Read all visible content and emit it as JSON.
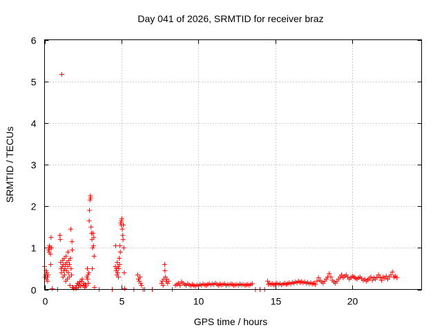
{
  "chart_data": {
    "type": "scatter",
    "title": "Day 041 of 2026, SRMTID for receiver braz",
    "xlabel": "GPS time / hours",
    "ylabel": "SRMTID / TECUs",
    "xlim": [
      0,
      24.5
    ],
    "ylim": [
      0,
      6
    ],
    "x_ticks": [
      0,
      5,
      10,
      15,
      20
    ],
    "y_ticks": [
      0,
      1,
      2,
      3,
      4,
      5,
      6
    ],
    "grid": true,
    "marker": "plus",
    "color": "#ff0000",
    "series": [
      {
        "name": "SRMTID",
        "points": [
          [
            0.0,
            0.55
          ],
          [
            0.05,
            0.3
          ],
          [
            0.08,
            0.35
          ],
          [
            0.1,
            0.45
          ],
          [
            0.12,
            0.25
          ],
          [
            0.15,
            0.4
          ],
          [
            0.18,
            0.3
          ],
          [
            0.2,
            0.2
          ],
          [
            0.22,
            0.35
          ],
          [
            0.25,
            0.95
          ],
          [
            0.28,
            1.0
          ],
          [
            0.3,
            0.9
          ],
          [
            0.32,
            1.05
          ],
          [
            0.35,
            1.0
          ],
          [
            0.38,
            0.85
          ],
          [
            0.4,
            0.6
          ],
          [
            0.42,
            1.25
          ],
          [
            0.45,
            1.0
          ],
          [
            0.5,
            0.02
          ],
          [
            0.85,
            0.0
          ],
          [
            1.0,
            1.3
          ],
          [
            1.02,
            1.2
          ],
          [
            1.05,
            0.65
          ],
          [
            1.08,
            0.5
          ],
          [
            1.1,
            0.4
          ],
          [
            1.12,
            5.17
          ],
          [
            1.15,
            0.55
          ],
          [
            1.18,
            0.7
          ],
          [
            1.2,
            0.3
          ],
          [
            1.22,
            0.6
          ],
          [
            1.25,
            0.45
          ],
          [
            1.28,
            0.75
          ],
          [
            1.3,
            0.35
          ],
          [
            1.32,
            0.5
          ],
          [
            1.35,
            0.6
          ],
          [
            1.38,
            0.2
          ],
          [
            1.4,
            0.8
          ],
          [
            1.42,
            0.45
          ],
          [
            1.45,
            0.65
          ],
          [
            1.48,
            0.25
          ],
          [
            1.5,
            0.55
          ],
          [
            1.52,
            0.9
          ],
          [
            1.55,
            0.4
          ],
          [
            1.58,
            0.7
          ],
          [
            1.6,
            0.3
          ],
          [
            1.62,
            0.6
          ],
          [
            1.65,
            0.1
          ],
          [
            1.68,
            0.75
          ],
          [
            1.7,
            1.45
          ],
          [
            1.72,
            0.5
          ],
          [
            1.75,
            0.35
          ],
          [
            1.78,
            1.15
          ],
          [
            1.8,
            0.95
          ],
          [
            1.82,
            0.05
          ],
          [
            1.85,
            0.05
          ],
          [
            1.9,
            0.02
          ],
          [
            2.0,
            0.05
          ],
          [
            2.05,
            0.02
          ],
          [
            2.1,
            0.1
          ],
          [
            2.15,
            0.15
          ],
          [
            2.2,
            0.05
          ],
          [
            2.25,
            0.12
          ],
          [
            2.3,
            0.18
          ],
          [
            2.35,
            0.08
          ],
          [
            2.4,
            0.2
          ],
          [
            2.45,
            0.25
          ],
          [
            2.5,
            0.1
          ],
          [
            2.55,
            0.15
          ],
          [
            2.6,
            0.05
          ],
          [
            2.65,
            0.12
          ],
          [
            2.7,
            0.08
          ],
          [
            2.75,
            0.3
          ],
          [
            2.78,
            0.5
          ],
          [
            2.8,
            0.25
          ],
          [
            2.82,
            0.35
          ],
          [
            2.85,
            0.15
          ],
          [
            2.88,
            0.4
          ],
          [
            2.9,
            1.65
          ],
          [
            2.92,
            1.9
          ],
          [
            2.95,
            2.15
          ],
          [
            2.98,
            2.25
          ],
          [
            3.0,
            2.2
          ],
          [
            3.02,
            1.5
          ],
          [
            3.05,
            1.35
          ],
          [
            3.08,
            1.2
          ],
          [
            3.1,
            0.5
          ],
          [
            3.12,
            1.0
          ],
          [
            3.15,
            1.35
          ],
          [
            3.18,
            1.05
          ],
          [
            3.2,
            1.25
          ],
          [
            3.22,
            0.8
          ],
          [
            3.25,
            0.05
          ],
          [
            3.55,
            0.0
          ],
          [
            4.4,
            0.0
          ],
          [
            4.6,
            0.55
          ],
          [
            4.62,
            1.05
          ],
          [
            4.65,
            0.45
          ],
          [
            4.68,
            0.5
          ],
          [
            4.7,
            0.35
          ],
          [
            4.72,
            0.65
          ],
          [
            4.75,
            0.4
          ],
          [
            4.78,
            0.55
          ],
          [
            4.8,
            0.3
          ],
          [
            4.82,
            0.5
          ],
          [
            4.85,
            0.75
          ],
          [
            4.88,
            0.6
          ],
          [
            4.9,
            1.05
          ],
          [
            4.92,
            0.9
          ],
          [
            4.95,
            1.6
          ],
          [
            4.98,
            1.55
          ],
          [
            5.0,
            1.65
          ],
          [
            5.02,
            1.7
          ],
          [
            5.05,
            1.45
          ],
          [
            5.08,
            1.3
          ],
          [
            5.1,
            1.2
          ],
          [
            5.12,
            1.55
          ],
          [
            5.15,
            1.0
          ],
          [
            5.18,
            0.4
          ],
          [
            5.2,
            0.02
          ],
          [
            5.8,
            0.0
          ],
          [
            6.05,
            0.35
          ],
          [
            6.1,
            0.25
          ],
          [
            6.15,
            0.2
          ],
          [
            6.2,
            0.3
          ],
          [
            6.25,
            0.15
          ],
          [
            6.3,
            0.1
          ],
          [
            6.4,
            0.0
          ],
          [
            6.5,
            0.0
          ],
          [
            7.0,
            0.0
          ],
          [
            7.6,
            0.15
          ],
          [
            7.65,
            0.2
          ],
          [
            7.7,
            0.1
          ],
          [
            7.75,
            0.25
          ],
          [
            7.8,
            0.6
          ],
          [
            7.82,
            0.45
          ],
          [
            7.85,
            0.3
          ],
          [
            7.9,
            0.2
          ],
          [
            7.95,
            0.25
          ],
          [
            8.0,
            0.15
          ],
          [
            8.05,
            0.2
          ],
          [
            8.3,
            0.0
          ],
          [
            8.5,
            0.1
          ],
          [
            8.6,
            0.12
          ],
          [
            8.7,
            0.15
          ],
          [
            8.8,
            0.1
          ],
          [
            8.9,
            0.18
          ],
          [
            9.0,
            0.15
          ],
          [
            9.1,
            0.12
          ],
          [
            9.2,
            0.1
          ],
          [
            9.3,
            0.14
          ],
          [
            9.4,
            0.11
          ],
          [
            9.5,
            0.09
          ],
          [
            9.6,
            0.12
          ],
          [
            9.7,
            0.1
          ],
          [
            9.8,
            0.08
          ],
          [
            9.9,
            0.11
          ],
          [
            10.0,
            0.09
          ],
          [
            10.1,
            0.12
          ],
          [
            10.2,
            0.1
          ],
          [
            10.3,
            0.13
          ],
          [
            10.4,
            0.11
          ],
          [
            10.5,
            0.1
          ],
          [
            10.6,
            0.12
          ],
          [
            10.7,
            0.14
          ],
          [
            10.8,
            0.11
          ],
          [
            10.9,
            0.13
          ],
          [
            11.0,
            0.12
          ],
          [
            11.1,
            0.15
          ],
          [
            11.2,
            0.12
          ],
          [
            11.3,
            0.1
          ],
          [
            11.4,
            0.13
          ],
          [
            11.5,
            0.11
          ],
          [
            11.6,
            0.12
          ],
          [
            11.7,
            0.14
          ],
          [
            11.8,
            0.1
          ],
          [
            11.9,
            0.12
          ],
          [
            12.0,
            0.11
          ],
          [
            12.1,
            0.13
          ],
          [
            12.2,
            0.12
          ],
          [
            12.3,
            0.1
          ],
          [
            12.4,
            0.11
          ],
          [
            12.5,
            0.12
          ],
          [
            12.6,
            0.1
          ],
          [
            12.7,
            0.13
          ],
          [
            12.8,
            0.11
          ],
          [
            12.9,
            0.12
          ],
          [
            13.0,
            0.1
          ],
          [
            13.1,
            0.11
          ],
          [
            13.2,
            0.12
          ],
          [
            13.3,
            0.1
          ],
          [
            13.4,
            0.12
          ],
          [
            13.5,
            0.14
          ],
          [
            13.7,
            0.0
          ],
          [
            14.0,
            0.0
          ],
          [
            14.3,
            0.0
          ],
          [
            14.5,
            0.2
          ],
          [
            14.55,
            0.12
          ],
          [
            14.6,
            0.15
          ],
          [
            14.7,
            0.12
          ],
          [
            14.8,
            0.14
          ],
          [
            14.9,
            0.11
          ],
          [
            15.0,
            0.13
          ],
          [
            15.1,
            0.15
          ],
          [
            15.2,
            0.12
          ],
          [
            15.3,
            0.14
          ],
          [
            15.4,
            0.11
          ],
          [
            15.5,
            0.13
          ],
          [
            15.6,
            0.15
          ],
          [
            15.7,
            0.12
          ],
          [
            15.8,
            0.14
          ],
          [
            15.9,
            0.16
          ],
          [
            16.0,
            0.13
          ],
          [
            16.1,
            0.17
          ],
          [
            16.2,
            0.15
          ],
          [
            16.3,
            0.18
          ],
          [
            16.4,
            0.16
          ],
          [
            16.5,
            0.2
          ],
          [
            16.6,
            0.17
          ],
          [
            16.7,
            0.19
          ],
          [
            16.8,
            0.16
          ],
          [
            16.9,
            0.18
          ],
          [
            17.0,
            0.15
          ],
          [
            17.1,
            0.17
          ],
          [
            17.2,
            0.14
          ],
          [
            17.3,
            0.16
          ],
          [
            17.4,
            0.13
          ],
          [
            17.5,
            0.15
          ],
          [
            17.6,
            0.12
          ],
          [
            17.7,
            0.2
          ],
          [
            17.8,
            0.28
          ],
          [
            17.9,
            0.22
          ],
          [
            18.0,
            0.18
          ],
          [
            18.1,
            0.15
          ],
          [
            18.2,
            0.2
          ],
          [
            18.3,
            0.25
          ],
          [
            18.4,
            0.3
          ],
          [
            18.5,
            0.38
          ],
          [
            18.6,
            0.3
          ],
          [
            18.7,
            0.22
          ],
          [
            18.8,
            0.18
          ],
          [
            18.9,
            0.15
          ],
          [
            19.0,
            0.2
          ],
          [
            19.1,
            0.25
          ],
          [
            19.2,
            0.3
          ],
          [
            19.3,
            0.35
          ],
          [
            19.4,
            0.28
          ],
          [
            19.5,
            0.32
          ],
          [
            19.6,
            0.35
          ],
          [
            19.7,
            0.3
          ],
          [
            19.8,
            0.25
          ],
          [
            19.9,
            0.28
          ],
          [
            20.0,
            0.32
          ],
          [
            20.1,
            0.3
          ],
          [
            20.2,
            0.27
          ],
          [
            20.3,
            0.25
          ],
          [
            20.4,
            0.28
          ],
          [
            20.5,
            0.3
          ],
          [
            20.6,
            0.26
          ],
          [
            20.7,
            0.22
          ],
          [
            20.8,
            0.25
          ],
          [
            20.9,
            0.2
          ],
          [
            21.0,
            0.23
          ],
          [
            21.1,
            0.26
          ],
          [
            21.2,
            0.3
          ],
          [
            21.3,
            0.22
          ],
          [
            21.4,
            0.28
          ],
          [
            21.5,
            0.25
          ],
          [
            21.6,
            0.3
          ],
          [
            21.7,
            0.35
          ],
          [
            21.8,
            0.28
          ],
          [
            21.9,
            0.22
          ],
          [
            22.0,
            0.3
          ],
          [
            22.1,
            0.27
          ],
          [
            22.2,
            0.32
          ],
          [
            22.3,
            0.25
          ],
          [
            22.4,
            0.3
          ],
          [
            22.5,
            0.35
          ],
          [
            22.6,
            0.42
          ],
          [
            22.7,
            0.3
          ],
          [
            22.8,
            0.32
          ],
          [
            22.9,
            0.28
          ]
        ]
      }
    ]
  }
}
